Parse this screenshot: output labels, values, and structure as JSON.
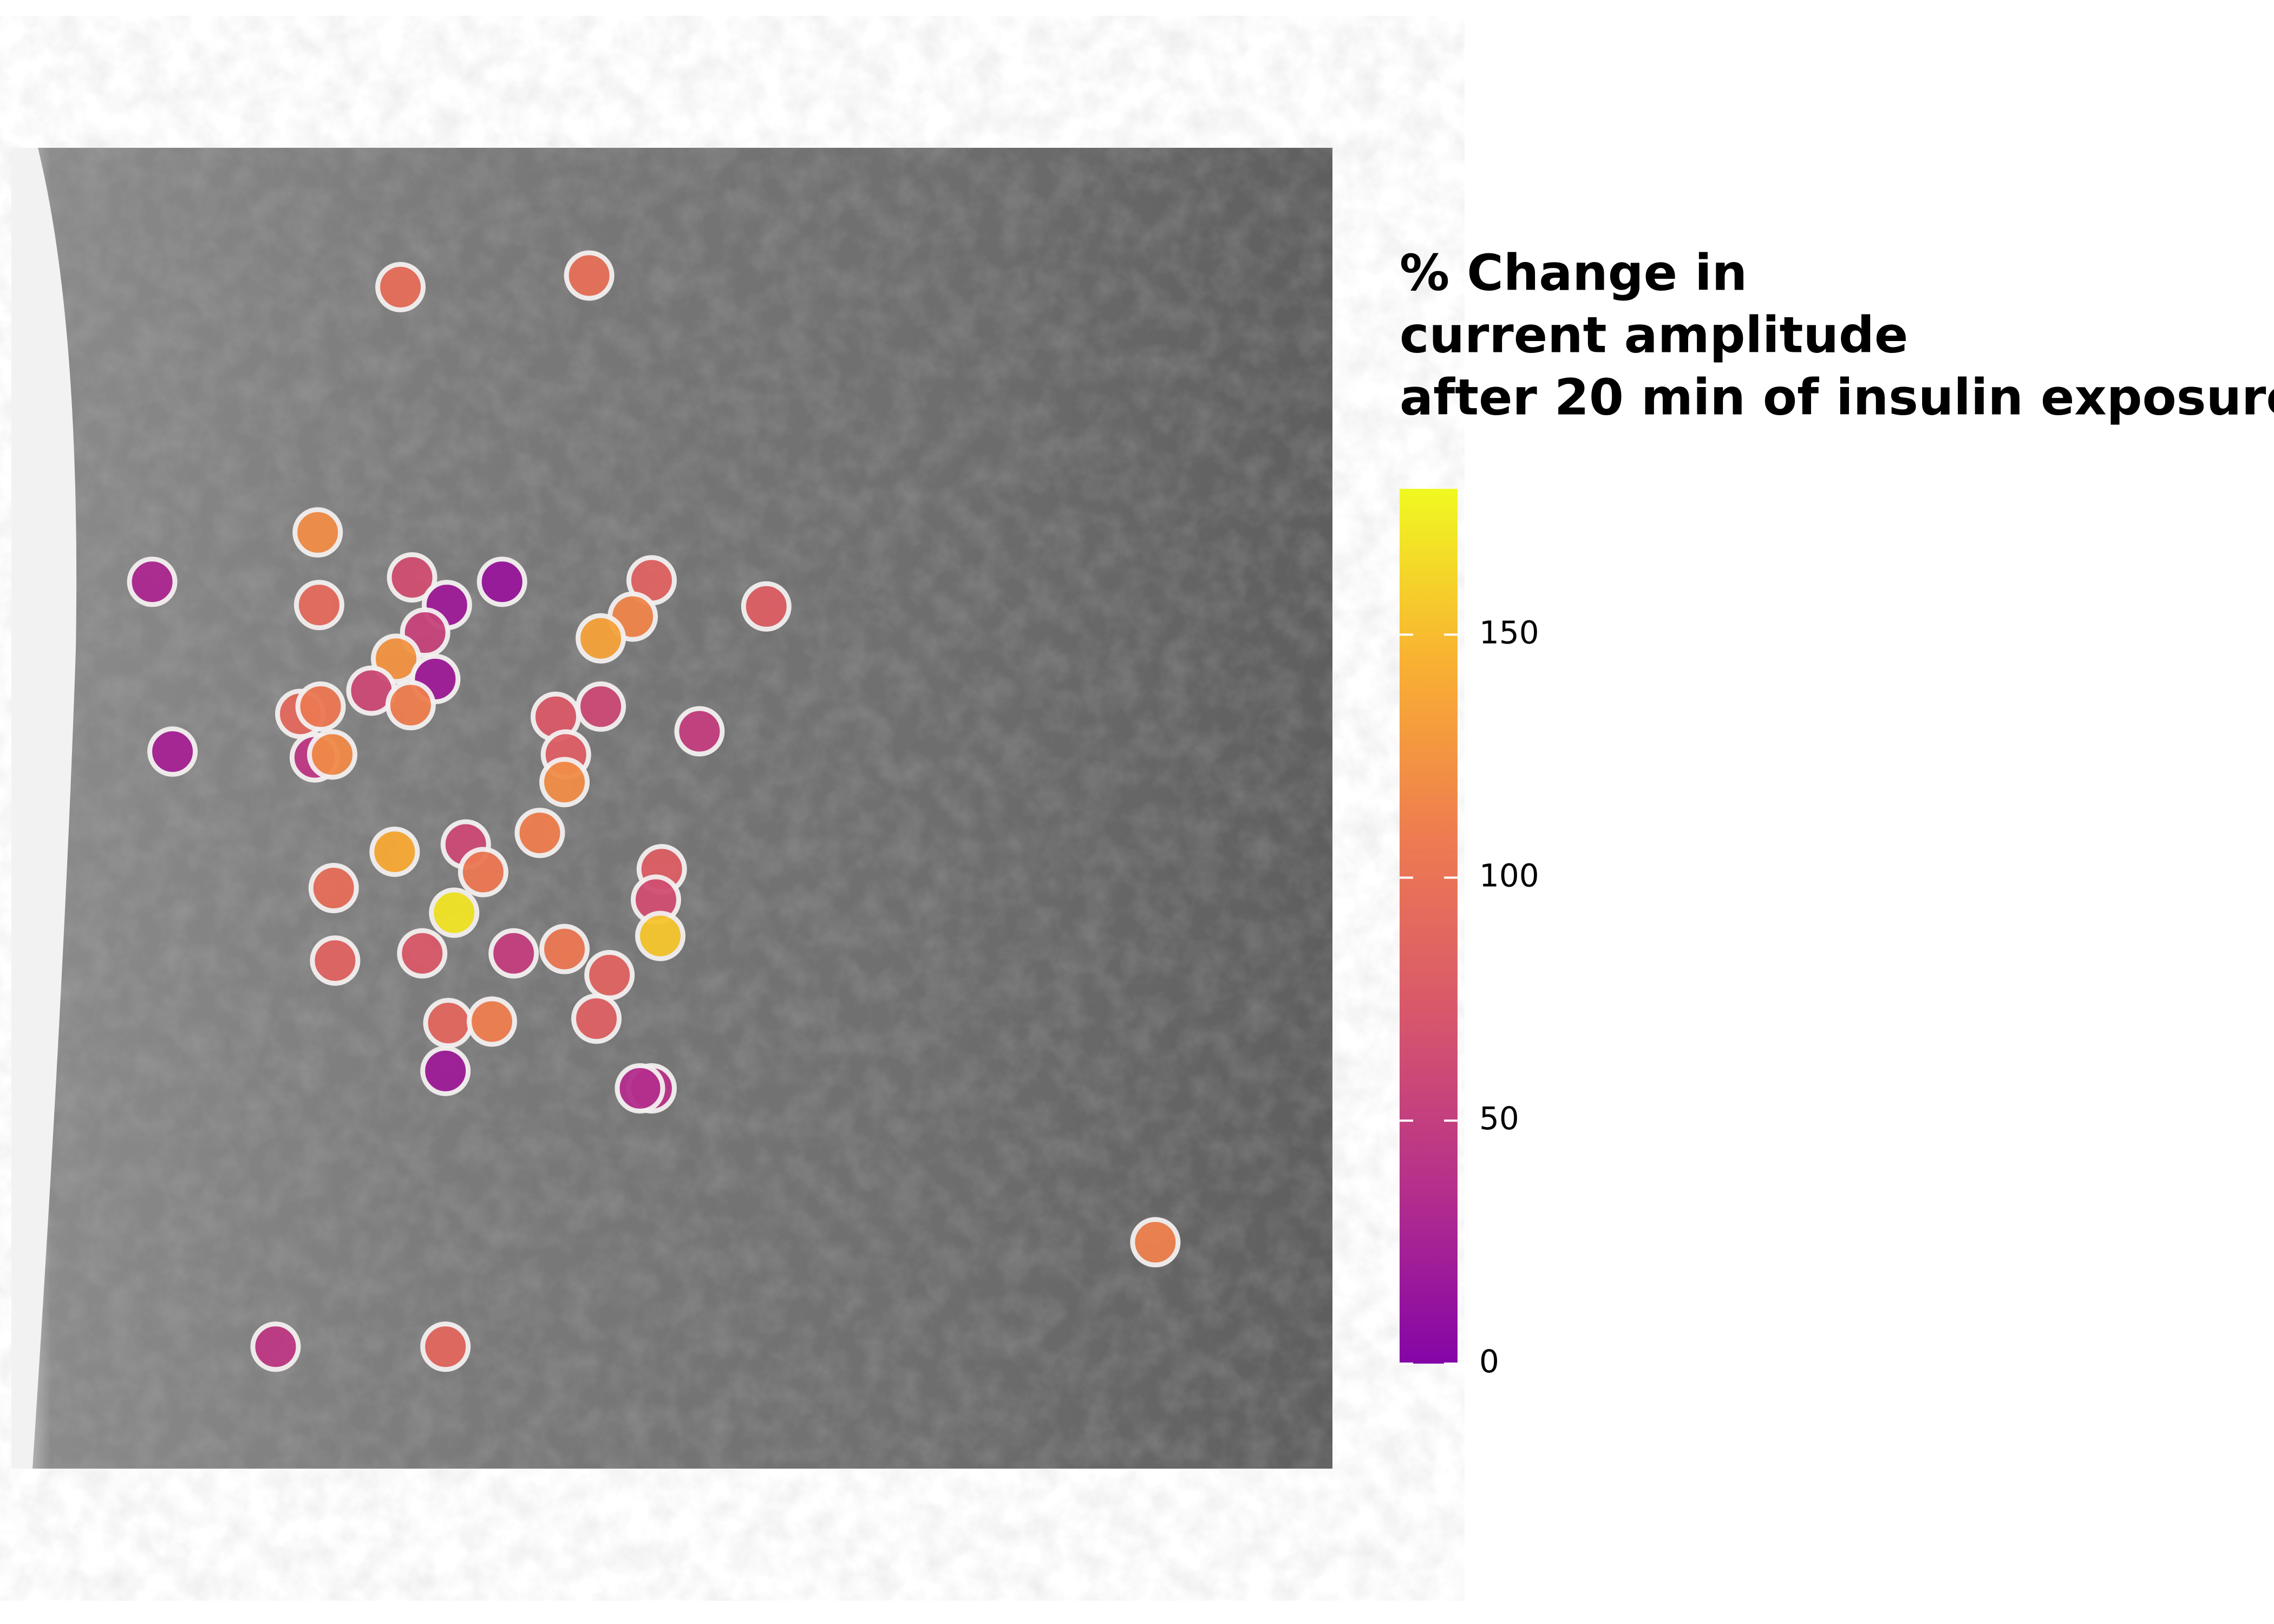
{
  "chart_data": {
    "type": "scatter",
    "legend_title": [
      "% Change in",
      "current amplitude",
      "after 20 min of insulin exposure"
    ],
    "x": [
      268,
      398,
      211,
      97,
      212,
      276,
      300,
      338,
      441,
      520,
      428,
      406,
      285,
      265,
      248,
      292,
      275,
      199,
      213,
      111,
      209,
      221,
      375,
      406,
      474,
      382,
      381,
      364,
      264,
      313,
      325,
      222,
      448,
      444,
      305,
      447,
      223,
      283,
      346,
      381,
      412,
      301,
      331,
      403,
      299,
      441,
      433,
      788,
      182,
      299
    ],
    "y": [
      96,
      88,
      265,
      299,
      315,
      296,
      315,
      299,
      298,
      316,
      323,
      338,
      334,
      352,
      374,
      366,
      384,
      390,
      385,
      416,
      420,
      418,
      392,
      385,
      402,
      418,
      437,
      472,
      485,
      480,
      499,
      510,
      497,
      518,
      527,
      543,
      560,
      555,
      555,
      552,
      570,
      603,
      602,
      600,
      636,
      648,
      648,
      754,
      826,
      826
    ],
    "values": [
      95,
      97,
      120,
      30,
      92,
      65,
      20,
      15,
      85,
      80,
      115,
      135,
      55,
      125,
      60,
      20,
      110,
      90,
      105,
      25,
      45,
      118,
      75,
      60,
      50,
      80,
      120,
      110,
      140,
      60,
      105,
      95,
      80,
      65,
      170,
      155,
      85,
      75,
      50,
      105,
      85,
      88,
      110,
      82,
      20,
      40,
      35,
      112,
      45,
      88
    ],
    "xlim": [
      0,
      910
    ],
    "ylim": [
      910,
      0
    ],
    "clim": [
      0,
      180
    ],
    "cticks": [
      0,
      50,
      100,
      150
    ]
  }
}
